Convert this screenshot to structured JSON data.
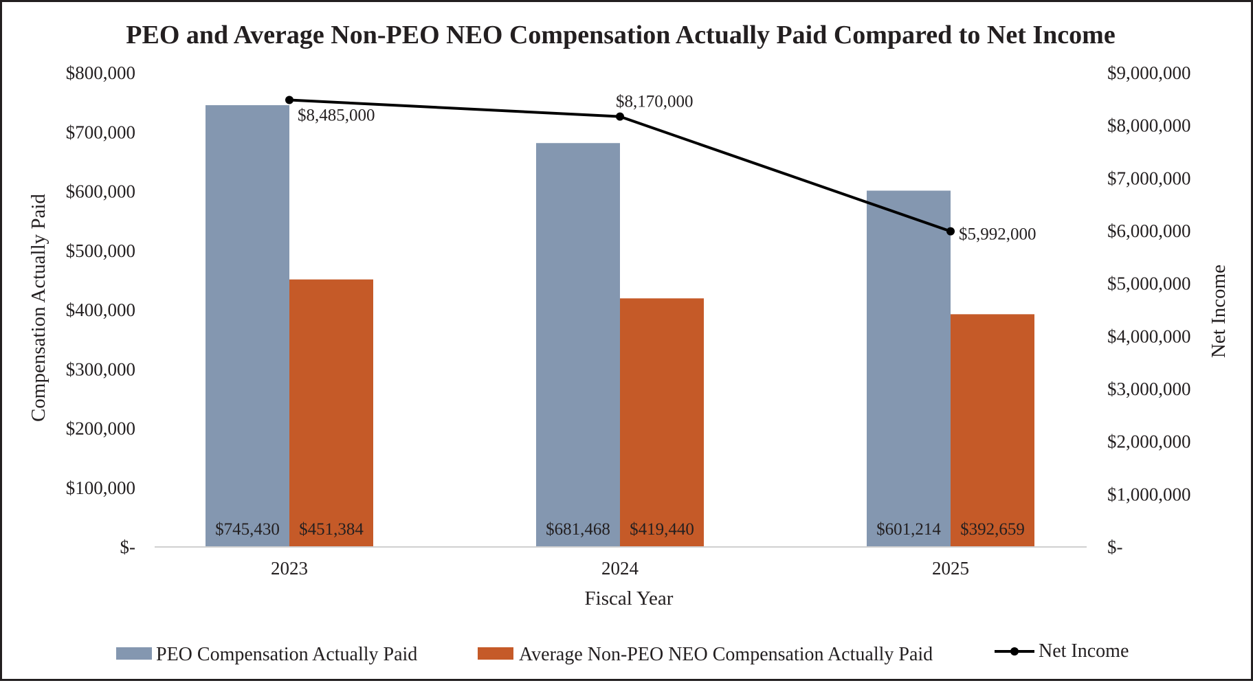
{
  "chart_data": {
    "type": "bar",
    "title": "PEO and Average Non-PEO NEO Compensation Actually Paid Compared to Net Income",
    "xlabel": "Fiscal Year",
    "ylabel": "Compensation Actually Paid",
    "y2label": "Net Income",
    "categories": [
      "2023",
      "2024",
      "2025"
    ],
    "ylim": [
      0,
      800000
    ],
    "y2lim": [
      0,
      9000000
    ],
    "yticks": [
      0,
      100000,
      200000,
      300000,
      400000,
      500000,
      600000,
      700000,
      800000
    ],
    "y2ticks": [
      0,
      1000000,
      2000000,
      3000000,
      4000000,
      5000000,
      6000000,
      7000000,
      8000000,
      9000000
    ],
    "yticklabels": [
      "$-",
      "$100,000",
      "$200,000",
      "$300,000",
      "$400,000",
      "$500,000",
      "$600,000",
      "$700,000",
      "$800,000"
    ],
    "y2ticklabels": [
      "$-",
      "$1,000,000",
      "$2,000,000",
      "$3,000,000",
      "$4,000,000",
      "$5,000,000",
      "$6,000,000",
      "$7,000,000",
      "$8,000,000",
      "$9,000,000"
    ],
    "grid": false,
    "legend_position": "bottom",
    "series": [
      {
        "name": "PEO Compensation Actually Paid",
        "kind": "bar",
        "axis": "left",
        "color": "#8497b0",
        "values": [
          745430,
          681468,
          601214
        ],
        "labels": [
          "$745,430",
          "$681,468",
          "$601,214"
        ]
      },
      {
        "name": "Average Non-PEO NEO Compensation Actually Paid",
        "kind": "bar",
        "axis": "left",
        "color": "#c55a28",
        "values": [
          451384,
          419440,
          392659
        ],
        "labels": [
          "$451,384",
          "$419,440",
          "$392,659"
        ]
      },
      {
        "name": "Net Income",
        "kind": "line",
        "axis": "right",
        "color": "#000000",
        "values": [
          8485000,
          8170000,
          5992000
        ],
        "labels": [
          "$8,485,000",
          "$8,170,000",
          "$5,992,000"
        ]
      }
    ]
  }
}
